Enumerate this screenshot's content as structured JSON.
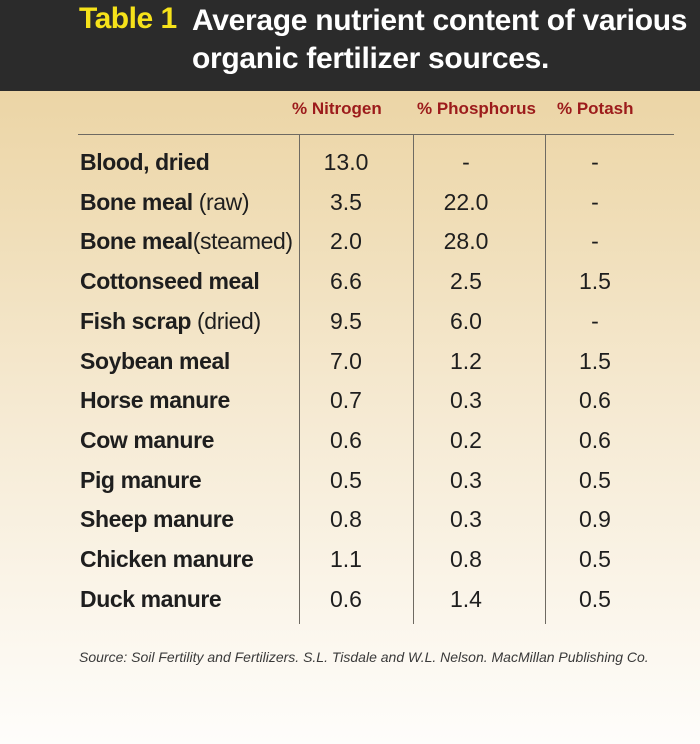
{
  "header": {
    "table_label": "Table 1",
    "title_line1": "Average nutrient content of various",
    "title_line2": "organic fertilizer sources."
  },
  "columns": [
    "% Nitrogen",
    "% Phosphorus",
    "% Potash"
  ],
  "rows": [
    {
      "name": "Blood, dried",
      "qualifier": "",
      "nitrogen": "13.0",
      "phosphorus": "-",
      "potash": "-"
    },
    {
      "name": "Bone meal",
      "qualifier": " (raw)",
      "nitrogen": "3.5",
      "phosphorus": "22.0",
      "potash": "-"
    },
    {
      "name": "Bone meal",
      "qualifier": "(steamed)",
      "nitrogen": "2.0",
      "phosphorus": "28.0",
      "potash": "-"
    },
    {
      "name": "Cottonseed meal",
      "qualifier": "",
      "nitrogen": "6.6",
      "phosphorus": "2.5",
      "potash": "1.5"
    },
    {
      "name": "Fish scrap",
      "qualifier": " (dried)",
      "nitrogen": "9.5",
      "phosphorus": "6.0",
      "potash": "-"
    },
    {
      "name": "Soybean meal",
      "qualifier": "",
      "nitrogen": "7.0",
      "phosphorus": "1.2",
      "potash": "1.5"
    },
    {
      "name": "Horse manure",
      "qualifier": "",
      "nitrogen": "0.7",
      "phosphorus": "0.3",
      "potash": "0.6"
    },
    {
      "name": "Cow manure",
      "qualifier": "",
      "nitrogen": "0.6",
      "phosphorus": "0.2",
      "potash": "0.6"
    },
    {
      "name": "Pig manure",
      "qualifier": "",
      "nitrogen": "0.5",
      "phosphorus": "0.3",
      "potash": "0.5"
    },
    {
      "name": "Sheep manure",
      "qualifier": "",
      "nitrogen": "0.8",
      "phosphorus": "0.3",
      "potash": "0.9"
    },
    {
      "name": "Chicken manure",
      "qualifier": "",
      "nitrogen": "1.1",
      "phosphorus": "0.8",
      "potash": "0.5"
    },
    {
      "name": "Duck manure",
      "qualifier": "",
      "nitrogen": "0.6",
      "phosphorus": "1.4",
      "potash": "0.5"
    }
  ],
  "source": "Source: Soil Fertility and Fertilizers. S.L. Tisdale and W.L. Nelson. MacMillan Publishing Co."
}
